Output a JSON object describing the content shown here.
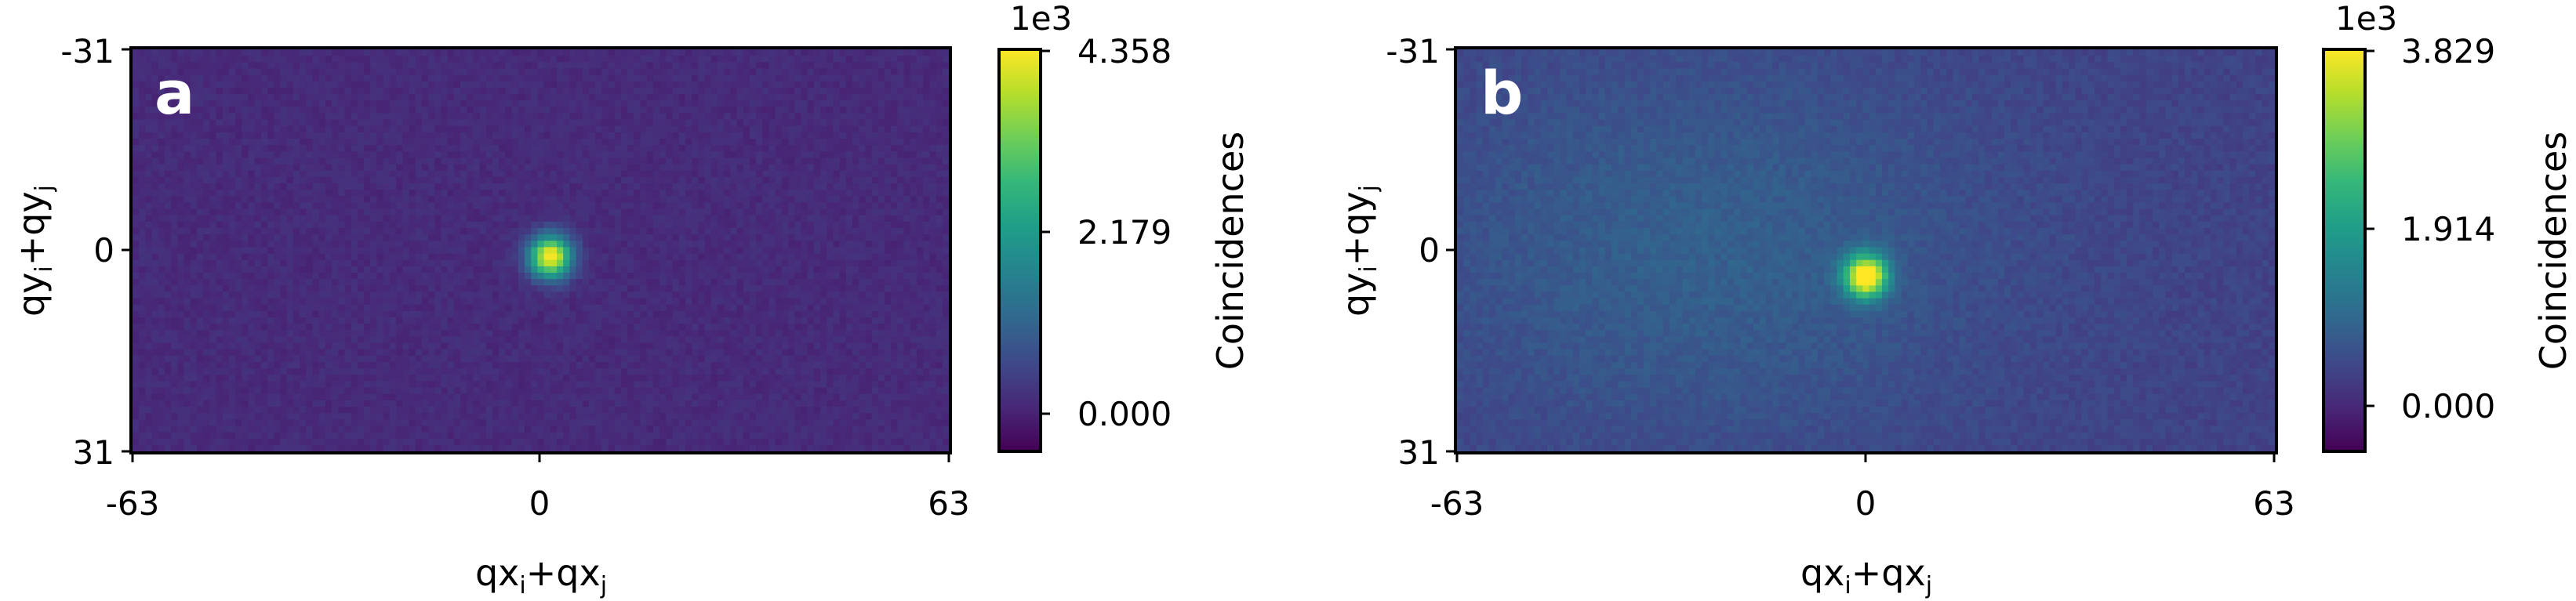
{
  "chart_data": [
    {
      "type": "heatmap",
      "panel_label": "a",
      "xlabel": "qx",
      "xlabel_subs": [
        "i",
        "j"
      ],
      "ylabel": "qy",
      "ylabel_subs": [
        "i",
        "j"
      ],
      "x_ticks": [
        "-63",
        "0",
        "63"
      ],
      "y_ticks": [
        "-31",
        "0",
        "31"
      ],
      "xlim": [
        -63,
        63
      ],
      "ylim": [
        -31,
        31
      ],
      "peak": {
        "x": 1.5,
        "y": 1,
        "value": 4358
      },
      "background_level": 0.05,
      "colorbar": {
        "label": "Coincidences",
        "offset_text": "1e3",
        "ticks": [
          "4.358",
          "2.179",
          "0.000"
        ],
        "tick_values": [
          4.358,
          2.179,
          0.0
        ],
        "range": [
          -0.5,
          4.358
        ]
      }
    },
    {
      "type": "heatmap",
      "panel_label": "b",
      "xlabel": "qx",
      "xlabel_subs": [
        "i",
        "j"
      ],
      "ylabel": "qy",
      "ylabel_subs": [
        "i",
        "j"
      ],
      "x_ticks": [
        "-63",
        "0",
        "63"
      ],
      "y_ticks": [
        "-31",
        "0",
        "31"
      ],
      "xlim": [
        -63,
        63
      ],
      "ylim": [
        -31,
        31
      ],
      "peak": {
        "x": 0,
        "y": 4,
        "value": 3829
      },
      "background_level": 0.12,
      "colorbar": {
        "label": "Coincidences",
        "offset_text": "1e3",
        "ticks": [
          "3.829",
          "1.914",
          "0.000"
        ],
        "tick_values": [
          3.829,
          1.914,
          0.0
        ],
        "range": [
          -0.5,
          3.829
        ]
      }
    }
  ],
  "colors": {
    "viridis": [
      "#440154",
      "#482878",
      "#3e4989",
      "#31688e",
      "#26828e",
      "#1f9e89",
      "#35b779",
      "#6ece58",
      "#b5de2b",
      "#fde725"
    ]
  }
}
